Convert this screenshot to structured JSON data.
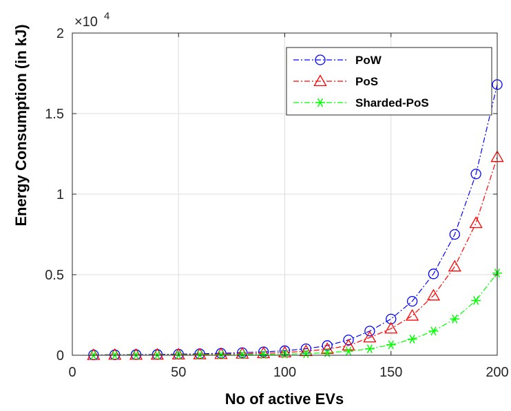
{
  "chart_data": {
    "type": "line",
    "title": "",
    "xlabel": "No of active EVs",
    "ylabel": "Energy Consumption (in kJ)",
    "y_multiplier": "×10",
    "y_exponent": "4",
    "xlim": [
      0,
      200
    ],
    "ylim": [
      0,
      2
    ],
    "xticks": [
      0,
      50,
      100,
      150,
      200
    ],
    "xtick_labels": [
      "0",
      "50",
      "100",
      "150",
      "200"
    ],
    "yticks": [
      0,
      0.5,
      1,
      1.5,
      2
    ],
    "ytick_labels": [
      "0",
      "0.5",
      "1",
      "1.5",
      "2"
    ],
    "grid": true,
    "legend_position": "top-right",
    "x": [
      10,
      20,
      30,
      40,
      50,
      60,
      70,
      80,
      90,
      100,
      110,
      120,
      130,
      140,
      150,
      160,
      170,
      180,
      190,
      200
    ],
    "series": [
      {
        "name": "PoW",
        "color": "#0000ff",
        "marker": "circle",
        "values": [
          0.002,
          0.003,
          0.004,
          0.005,
          0.007,
          0.009,
          0.012,
          0.016,
          0.021,
          0.028,
          0.04,
          0.06,
          0.095,
          0.15,
          0.225,
          0.335,
          0.505,
          0.75,
          1.125,
          1.68
        ]
      },
      {
        "name": "PoS",
        "color": "#ff0000",
        "marker": "triangle",
        "values": [
          0.001,
          0.002,
          0.002,
          0.003,
          0.004,
          0.005,
          0.007,
          0.009,
          0.012,
          0.017,
          0.025,
          0.038,
          0.06,
          0.11,
          0.165,
          0.245,
          0.37,
          0.55,
          0.82,
          1.23
        ]
      },
      {
        "name": "Sharded-PoS",
        "color": "#00ff00",
        "marker": "asterisk",
        "values": [
          0.0005,
          0.001,
          0.001,
          0.0015,
          0.002,
          0.0025,
          0.003,
          0.004,
          0.005,
          0.007,
          0.01,
          0.016,
          0.025,
          0.04,
          0.065,
          0.1,
          0.15,
          0.225,
          0.34,
          0.51
        ]
      }
    ]
  }
}
